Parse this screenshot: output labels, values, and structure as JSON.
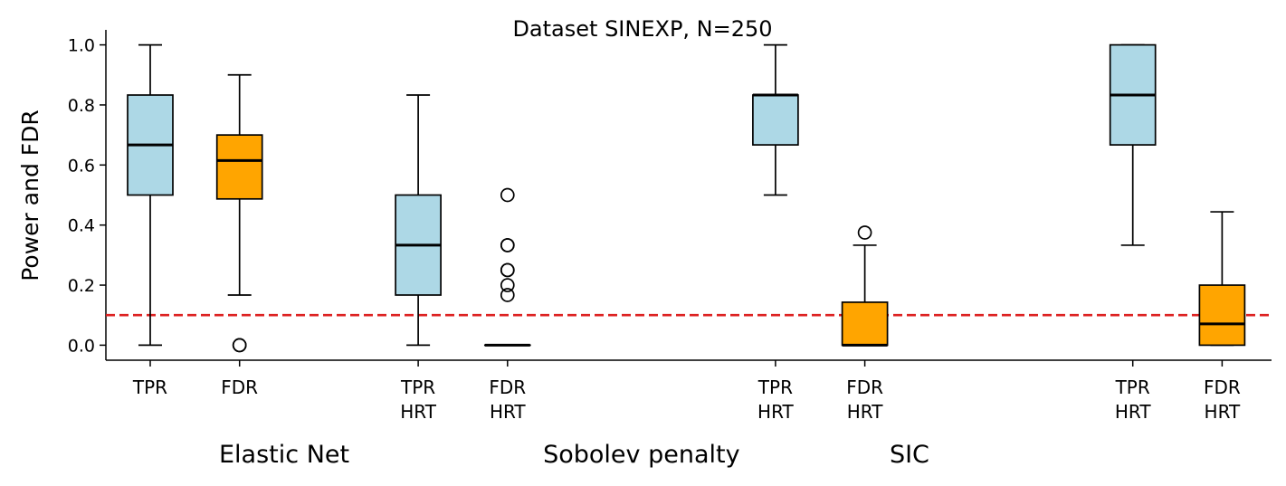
{
  "chart_data": {
    "type": "box",
    "title": "Dataset SINEXP, N=250",
    "ylabel": "Power and FDR",
    "xlabel": "",
    "ylim": [
      -0.05,
      1.05
    ],
    "yticks": [
      0.0,
      0.2,
      0.4,
      0.6,
      0.8,
      1.0
    ],
    "ytick_labels": [
      "0.0",
      "0.2",
      "0.4",
      "0.6",
      "0.8",
      "1.0"
    ],
    "reference_line": {
      "y": 0.1,
      "color": "#dd2222",
      "style": "dashed"
    },
    "colors": {
      "TPR": "#add8e6",
      "FDR": "#ffa500"
    },
    "groups": [
      {
        "label": "Elastic Net",
        "slot_range": [
          0,
          3
        ]
      },
      {
        "label": "Sobolev penalty",
        "slot_range": [
          5,
          6
        ]
      },
      {
        "label": "SIC",
        "slot_range": [
          8,
          9
        ]
      }
    ],
    "boxes": [
      {
        "slot": 0,
        "label_lines": [
          "TPR"
        ],
        "kind": "TPR",
        "whislo": 0.0,
        "q1": 0.5,
        "median": 0.667,
        "q3": 0.833,
        "whishi": 1.0,
        "fliers": []
      },
      {
        "slot": 1,
        "label_lines": [
          "FDR"
        ],
        "kind": "FDR",
        "whislo": 0.167,
        "q1": 0.487,
        "median": 0.615,
        "q3": 0.7,
        "whishi": 0.9,
        "fliers": [
          0.0,
          0.0
        ]
      },
      {
        "slot": 3,
        "label_lines": [
          "TPR",
          "HRT"
        ],
        "kind": "TPR",
        "whislo": 0.0,
        "q1": 0.167,
        "median": 0.333,
        "q3": 0.5,
        "whishi": 0.833,
        "fliers": []
      },
      {
        "slot": 4,
        "label_lines": [
          "FDR",
          "HRT"
        ],
        "kind": "FDR",
        "whislo": 0.0,
        "q1": 0.0,
        "median": 0.0,
        "q3": 0.0,
        "whishi": 0.0,
        "fliers": [
          0.167,
          0.2,
          0.25,
          0.25,
          0.333,
          0.333,
          0.5
        ]
      },
      {
        "slot": 7,
        "label_lines": [
          "TPR",
          "HRT"
        ],
        "kind": "TPR",
        "whislo": 0.5,
        "q1": 0.667,
        "median": 0.833,
        "q3": 0.833,
        "whishi": 1.0,
        "fliers": []
      },
      {
        "slot": 8,
        "label_lines": [
          "FDR",
          "HRT"
        ],
        "kind": "FDR",
        "whislo": 0.0,
        "q1": 0.0,
        "median": 0.0,
        "q3": 0.143,
        "whishi": 0.333,
        "fliers": [
          0.375
        ]
      },
      {
        "slot": 11,
        "label_lines": [
          "TPR",
          "HRT"
        ],
        "kind": "TPR",
        "whislo": 0.333,
        "q1": 0.667,
        "median": 0.833,
        "q3": 1.0,
        "whishi": 1.0,
        "fliers": []
      },
      {
        "slot": 12,
        "label_lines": [
          "FDR",
          "HRT"
        ],
        "kind": "FDR",
        "whislo": 0.0,
        "q1": 0.0,
        "median": 0.071,
        "q3": 0.2,
        "whishi": 0.444,
        "fliers": []
      }
    ]
  }
}
